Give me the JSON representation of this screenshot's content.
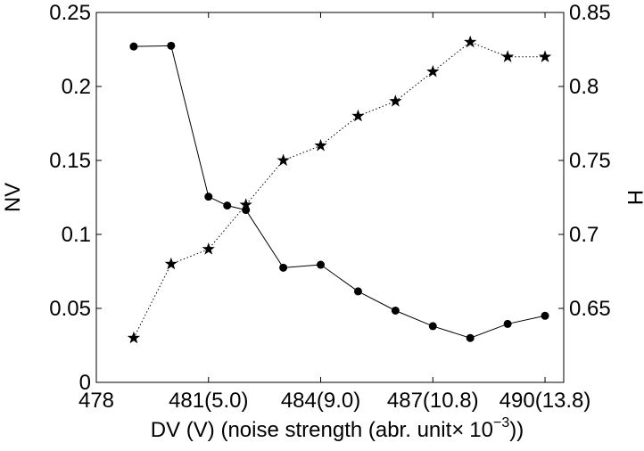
{
  "chart_data": {
    "type": "line",
    "xlabel": "DV (V) (noise strength (abr. unit",
    "xlabel_times": "×",
    "xlabel_base": "10",
    "xlabel_exp": "−3",
    "xlabel_close": "))",
    "ylabel_left": "NV",
    "ylabel_right": "H",
    "xlim": [
      478,
      490.5
    ],
    "ylim_left": [
      0,
      0.25
    ],
    "ylim_right": [
      0.6,
      0.85
    ],
    "x_ticks": [
      {
        "value": 478,
        "label": "478"
      },
      {
        "value": 481,
        "label": "481(5.0)"
      },
      {
        "value": 484,
        "label": "484(9.0)"
      },
      {
        "value": 487,
        "label": "487(10.8)"
      },
      {
        "value": 490,
        "label": "490(13.8)"
      }
    ],
    "y_ticks_left": [
      {
        "value": 0,
        "label": "0"
      },
      {
        "value": 0.05,
        "label": "0.05"
      },
      {
        "value": 0.1,
        "label": "0.1"
      },
      {
        "value": 0.15,
        "label": "0.15"
      },
      {
        "value": 0.2,
        "label": "0.2"
      },
      {
        "value": 0.25,
        "label": "0.25"
      }
    ],
    "y_ticks_right": [
      {
        "value": 0.65,
        "label": "0.65"
      },
      {
        "value": 0.7,
        "label": "0.7"
      },
      {
        "value": 0.75,
        "label": "0.75"
      },
      {
        "value": 0.8,
        "label": "0.8"
      },
      {
        "value": 0.85,
        "label": "0.85"
      }
    ],
    "grid": false,
    "series": [
      {
        "axis": "left",
        "marker": "circle",
        "line_style": "solid",
        "x": [
          479,
          480,
          481,
          481.5,
          482,
          483,
          484,
          485,
          486,
          487,
          488,
          489,
          490
        ],
        "y": [
          0.227,
          0.2275,
          0.1255,
          0.1195,
          0.1165,
          0.0775,
          0.0795,
          0.0615,
          0.0485,
          0.038,
          0.03,
          0.0395,
          0.045
        ]
      },
      {
        "axis": "right",
        "marker": "star",
        "line_style": "dotted",
        "x": [
          479,
          480,
          481,
          482,
          483,
          484,
          485,
          486,
          487,
          488,
          489,
          490
        ],
        "y": [
          0.63,
          0.68,
          0.69,
          0.72,
          0.75,
          0.76,
          0.78,
          0.79,
          0.81,
          0.83,
          0.82,
          0.82
        ]
      }
    ]
  }
}
